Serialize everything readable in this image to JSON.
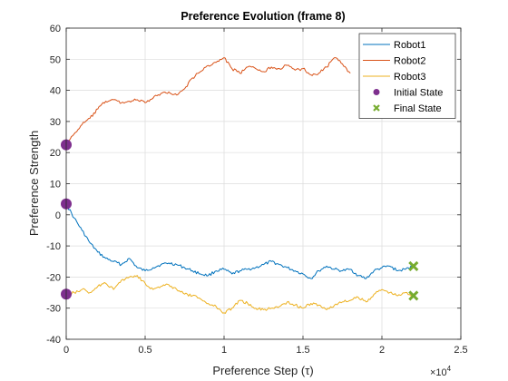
{
  "chart_data": {
    "type": "line",
    "title": "Preference Evolution (frame 8)",
    "xlabel": "Preference Step (τ)",
    "ylabel": "Preference Strength",
    "x_multiplier_label": "×10",
    "x_multiplier_exp": "4",
    "xlim": [
      0,
      25000
    ],
    "ylim": [
      -40,
      60
    ],
    "xticks": [
      0,
      5000,
      10000,
      15000,
      20000,
      25000
    ],
    "xtick_labels": [
      "0",
      "0.5",
      "1",
      "1.5",
      "2",
      "2.5"
    ],
    "yticks": [
      -40,
      -30,
      -20,
      -10,
      0,
      10,
      20,
      30,
      40,
      50,
      60
    ],
    "ytick_labels": [
      "-40",
      "-30",
      "-20",
      "-10",
      "0",
      "10",
      "20",
      "30",
      "40",
      "50",
      "60"
    ],
    "grid": true,
    "legend_position": "top-right",
    "series": [
      {
        "name": "Robot1",
        "color": "#0072BD",
        "x": [
          0,
          500,
          1000,
          1500,
          2000,
          2500,
          3000,
          3500,
          4000,
          4500,
          5000,
          5500,
          6000,
          6500,
          7000,
          7500,
          8000,
          8500,
          9000,
          9500,
          10000,
          10500,
          11000,
          11500,
          12000,
          12500,
          13000,
          13500,
          14000,
          14500,
          15000,
          15500,
          16000,
          16500,
          17000,
          17500,
          18000,
          18500,
          19000,
          19500,
          20000,
          20500,
          21000,
          21500,
          22000
        ],
        "y": [
          3.5,
          -1,
          -5,
          -9,
          -12,
          -14,
          -15,
          -16,
          -14,
          -17,
          -18,
          -17,
          -16,
          -15.5,
          -16,
          -17,
          -18,
          -19,
          -19.5,
          -18,
          -17.5,
          -19,
          -18,
          -17.5,
          -17,
          -16,
          -15,
          -16,
          -17,
          -18,
          -19,
          -20.5,
          -18,
          -16.5,
          -17.5,
          -18,
          -17.5,
          -19.5,
          -20.5,
          -18,
          -17,
          -16.5,
          -18,
          -17.5,
          -16.5
        ]
      },
      {
        "name": "Robot2",
        "color": "#D95319",
        "x": [
          0,
          500,
          1000,
          1500,
          2000,
          2500,
          3000,
          3500,
          4000,
          4500,
          5000,
          5500,
          6000,
          6500,
          7000,
          7500,
          8000,
          8500,
          9000,
          9500,
          10000,
          10500,
          11000,
          11500,
          12000,
          12500,
          13000,
          13500,
          14000,
          14500,
          15000,
          15500,
          16000,
          16500,
          17000,
          17500,
          18000
        ],
        "y": [
          22.5,
          26,
          29,
          31,
          34,
          36.5,
          37,
          36,
          36.5,
          37,
          36,
          37.5,
          39,
          39.5,
          38.5,
          40.5,
          44,
          46,
          48,
          49,
          50.5,
          47,
          45.5,
          47.5,
          47,
          46,
          47.5,
          47,
          48,
          46.5,
          47,
          45,
          45.5,
          47.5,
          50.5,
          48.5,
          45.5
        ]
      },
      {
        "name": "Robot3",
        "color": "#EDB120",
        "x": [
          0,
          500,
          1000,
          1500,
          2000,
          2500,
          3000,
          3500,
          4000,
          4500,
          5000,
          5500,
          6000,
          6500,
          7000,
          7500,
          8000,
          8500,
          9000,
          9500,
          10000,
          10500,
          11000,
          11500,
          12000,
          12500,
          13000,
          13500,
          14000,
          14500,
          15000,
          15500,
          16000,
          16500,
          17000,
          17500,
          18000,
          18500,
          19000,
          19500,
          20000,
          20500,
          21000,
          21500,
          22000
        ],
        "y": [
          -25.5,
          -25,
          -24,
          -25,
          -23,
          -22,
          -24,
          -21,
          -20,
          -19.5,
          -22,
          -24,
          -23,
          -22.5,
          -24,
          -25.5,
          -26,
          -27,
          -28.5,
          -29.5,
          -31.5,
          -30,
          -27.5,
          -28.5,
          -30,
          -30.5,
          -30,
          -29.5,
          -28,
          -29,
          -30,
          -28.5,
          -29,
          -30.5,
          -29,
          -28,
          -27.5,
          -26.5,
          -28,
          -25.5,
          -24,
          -25,
          -26,
          -25,
          -26
        ]
      }
    ],
    "markers": [
      {
        "name": "Initial State",
        "color": "#7E2F8E",
        "symbol": "circle",
        "points": [
          {
            "x": 0,
            "y": 3.5
          },
          {
            "x": 0,
            "y": 22.5
          },
          {
            "x": 0,
            "y": -25.5
          }
        ]
      },
      {
        "name": "Final State",
        "color": "#77AC30",
        "symbol": "cross",
        "points": [
          {
            "x": 22000,
            "y": -16.5
          },
          {
            "x": 22000,
            "y": -26
          }
        ]
      }
    ]
  }
}
